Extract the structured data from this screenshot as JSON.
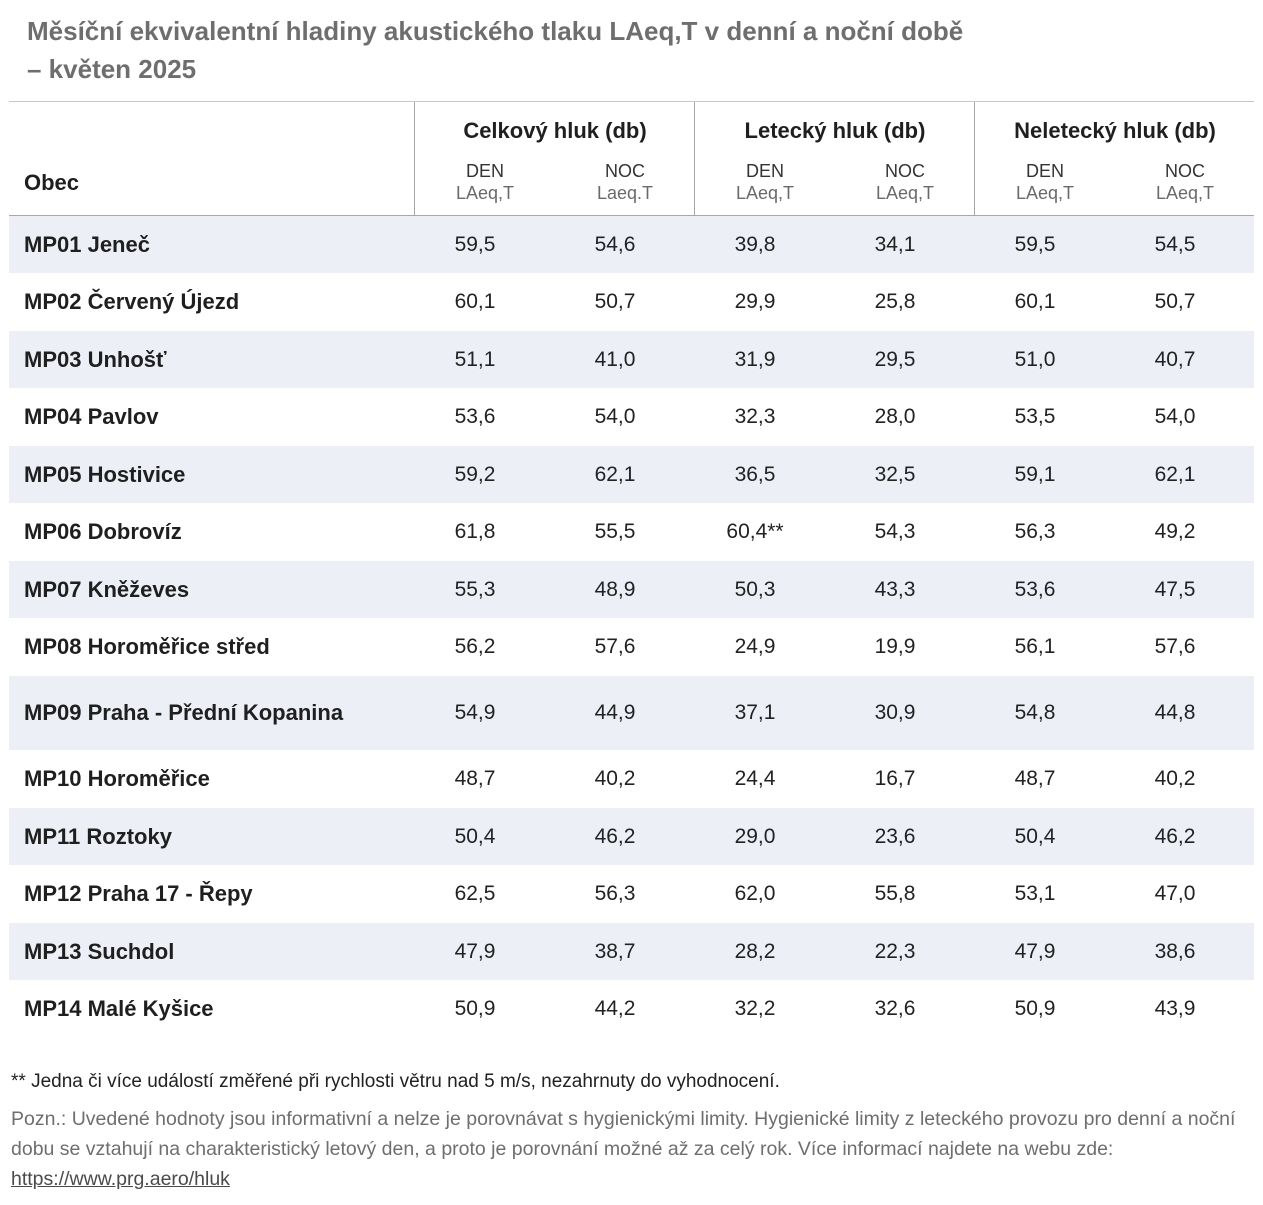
{
  "title_line1": "Měsíční ekvivalentní hladiny akustického tlaku LAeq,T v denní a noční době",
  "title_line2": "– květen 2025",
  "header": {
    "obec": "Obec",
    "groups": [
      {
        "title": "Celkový hluk (db)",
        "den": "DEN",
        "den_unit": "LAeq,T",
        "noc": "NOC",
        "noc_unit": "Laeq.T"
      },
      {
        "title": "Letecký hluk (db)",
        "den": "DEN",
        "den_unit": "LAeq,T",
        "noc": "NOC",
        "noc_unit": "LAeq,T"
      },
      {
        "title": "Neletecký hluk (db)",
        "den": "DEN",
        "den_unit": "LAeq,T",
        "noc": "NOC",
        "noc_unit": "LAeq,T"
      }
    ]
  },
  "rows": [
    {
      "name": "MP01 Jeneč",
      "values": [
        "59,5",
        "54,6",
        "39,8",
        "34,1",
        "59,5",
        "54,5"
      ]
    },
    {
      "name": "MP02 Červený Újezd",
      "values": [
        "60,1",
        "50,7",
        "29,9",
        "25,8",
        "60,1",
        "50,7"
      ]
    },
    {
      "name": "MP03 Unhošť",
      "values": [
        "51,1",
        "41,0",
        "31,9",
        "29,5",
        "51,0",
        "40,7"
      ]
    },
    {
      "name": "MP04 Pavlov",
      "values": [
        "53,6",
        "54,0",
        "32,3",
        "28,0",
        "53,5",
        "54,0"
      ]
    },
    {
      "name": "MP05 Hostivice",
      "values": [
        "59,2",
        "62,1",
        "36,5",
        "32,5",
        "59,1",
        "62,1"
      ]
    },
    {
      "name": "MP06 Dobrovíz",
      "values": [
        "61,8",
        "55,5",
        "60,4**",
        "54,3",
        "56,3",
        "49,2"
      ]
    },
    {
      "name": "MP07 Kněževes",
      "values": [
        "55,3",
        "48,9",
        "50,3",
        "43,3",
        "53,6",
        "47,5"
      ]
    },
    {
      "name": "MP08 Horoměřice střed",
      "values": [
        "56,2",
        "57,6",
        "24,9",
        "19,9",
        "56,1",
        "57,6"
      ]
    },
    {
      "name": "MP09 Praha - Přední Kopanina",
      "values": [
        "54,9",
        "44,9",
        "37,1",
        "30,9",
        "54,8",
        "44,8"
      ]
    },
    {
      "name": "MP10 Horoměřice",
      "values": [
        "48,7",
        "40,2",
        "24,4",
        "16,7",
        "48,7",
        "40,2"
      ]
    },
    {
      "name": "MP11 Roztoky",
      "values": [
        "50,4",
        "46,2",
        "29,0",
        "23,6",
        "50,4",
        "46,2"
      ]
    },
    {
      "name": "MP12 Praha 17 - Řepy",
      "values": [
        "62,5",
        "56,3",
        "62,0",
        "55,8",
        "53,1",
        "47,0"
      ]
    },
    {
      "name": "MP13 Suchdol",
      "values": [
        "47,9",
        "38,7",
        "28,2",
        "22,3",
        "47,9",
        "38,6"
      ]
    },
    {
      "name": "MP14 Malé Kyšice",
      "values": [
        "50,9",
        "44,2",
        "32,2",
        "32,6",
        "50,9",
        "43,9"
      ]
    }
  ],
  "footnote": "**  Jedna či více událostí změřené při rychlosti větru nad 5 m/s, nezahrnuty do vyhodnocení.",
  "note_text": "Pozn.: Uvedené hodnoty jsou informativní a nelze je porovnávat s hygienickými limity. Hygienické limity z leteckého provozu pro denní a noční dobu se vztahují na charakteristický letový den, a proto je porovnání možné až za celý rok. Více informací najdete na webu zde: ",
  "note_link": "https://www.prg.aero/hluk"
}
